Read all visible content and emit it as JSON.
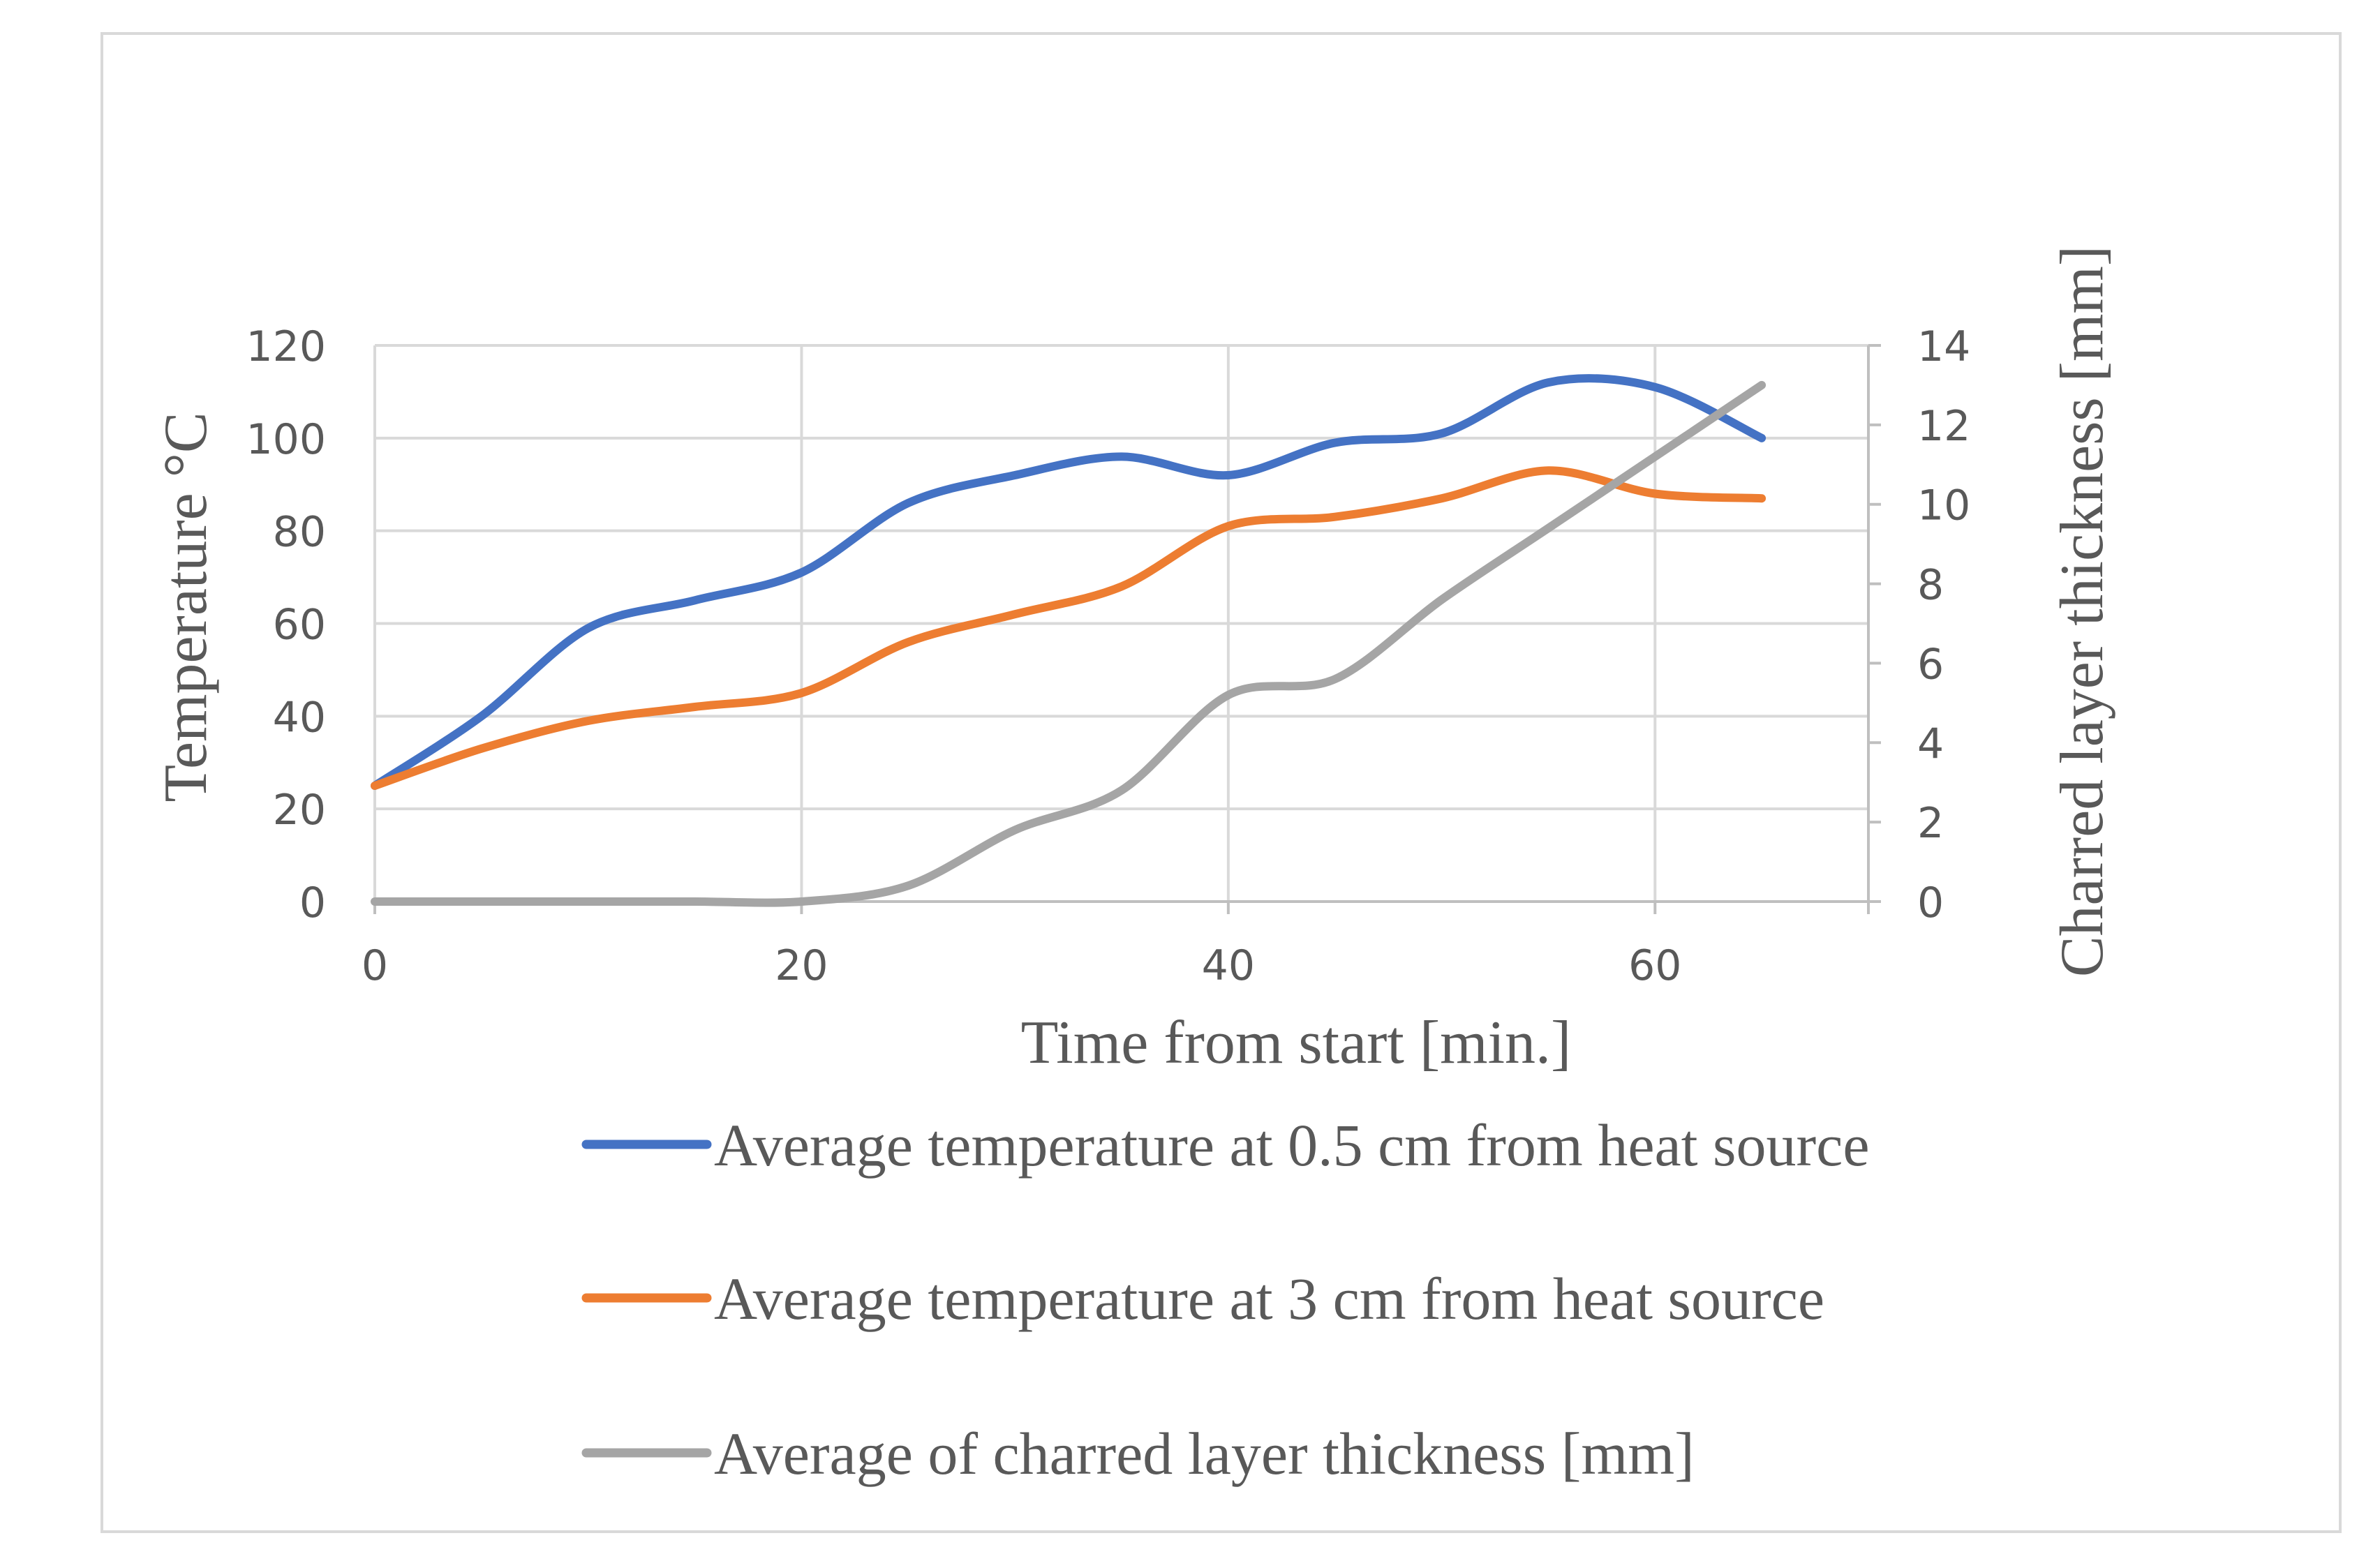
{
  "chart_data": {
    "type": "line",
    "xlabel": "Time from start [min.]",
    "ylabel": "Temperature °C",
    "y2label": "Charred layer thickness [mm]",
    "xlim": [
      0,
      70
    ],
    "xticks": [
      0,
      20,
      40,
      60
    ],
    "ylim": [
      0,
      120
    ],
    "yticks": [
      0,
      20,
      40,
      60,
      80,
      100,
      120
    ],
    "y2lim": [
      0,
      14
    ],
    "y2ticks": [
      0,
      2,
      4,
      6,
      8,
      10,
      12,
      14
    ],
    "grid": true,
    "legend_position": "bottom",
    "x": [
      0,
      5,
      10,
      15,
      20,
      25,
      30,
      35,
      40,
      45,
      50,
      55,
      60,
      65
    ],
    "series": [
      {
        "name": "Average temperature at 0.5 cm from heat source",
        "axis": "left",
        "color": "#4472C4",
        "values": [
          25,
          40,
          59,
          65,
          71,
          86,
          92,
          96,
          92,
          99,
          101,
          112,
          111,
          100
        ]
      },
      {
        "name": "Average temperature at 3 cm from heat source",
        "axis": "left",
        "color": "#ED7D31",
        "values": [
          25,
          33,
          39,
          42,
          45,
          56,
          62,
          68,
          81,
          83,
          87,
          93,
          88,
          87
        ]
      },
      {
        "name": "Average of charred layer thickness [mm]",
        "axis": "right",
        "color": "#A5A5A5",
        "values": [
          0,
          0,
          0,
          0,
          0,
          0.4,
          1.8,
          2.8,
          5.2,
          5.6,
          7.6,
          9.4,
          11.2,
          13
        ]
      }
    ]
  }
}
